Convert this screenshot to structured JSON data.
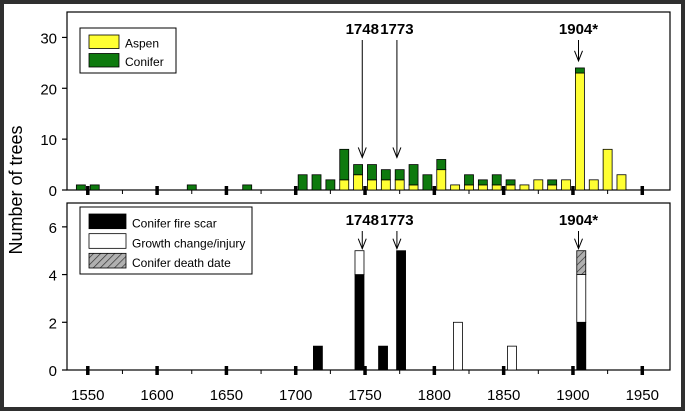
{
  "colors": {
    "aspen": "#ffff33",
    "conifer": "#0e7a0e",
    "fire_scar": "#000000",
    "growth_change": "#ffffff",
    "death_date": "#b0b0b0",
    "frame": "#2f2f2f"
  },
  "chart_data": [
    {
      "type": "bar",
      "stacked": true,
      "title": "",
      "ylabel": "Number of trees",
      "xlabel": "",
      "xlim": [
        1535,
        1970
      ],
      "ylim": [
        0,
        35
      ],
      "yticks": [
        0,
        10,
        20,
        30
      ],
      "bin_width": 10,
      "legend_position": "top-left",
      "x": [
        1545,
        1555,
        1625,
        1665,
        1705,
        1715,
        1725,
        1735,
        1745,
        1755,
        1765,
        1775,
        1785,
        1795,
        1805,
        1815,
        1825,
        1835,
        1845,
        1855,
        1865,
        1875,
        1885,
        1895,
        1905,
        1915,
        1925,
        1935
      ],
      "series": [
        {
          "name": "Aspen",
          "color_key": "aspen",
          "values": [
            0,
            0,
            0,
            0,
            0,
            0,
            0,
            2,
            3,
            2,
            2,
            2,
            1,
            0,
            4,
            1,
            1,
            1,
            1,
            1,
            1,
            2,
            1,
            2,
            23,
            2,
            8,
            3
          ]
        },
        {
          "name": "Conifer",
          "color_key": "conifer",
          "values": [
            1,
            1,
            1,
            1,
            3,
            3,
            2,
            6,
            2,
            3,
            2,
            2,
            4,
            3,
            2,
            0,
            2,
            1,
            2,
            1,
            0,
            0,
            1,
            0,
            1,
            0,
            0,
            0
          ]
        }
      ],
      "annotations": [
        {
          "label": "1748",
          "x": 1748,
          "arrow_to": 6
        },
        {
          "label": "1773",
          "x": 1773,
          "arrow_to": 6
        },
        {
          "label": "1904*",
          "x": 1904,
          "arrow_to": 25
        }
      ]
    },
    {
      "type": "bar",
      "stacked": true,
      "title": "",
      "ylabel": "",
      "xlabel": "",
      "xlim": [
        1535,
        1970
      ],
      "ylim": [
        0,
        7
      ],
      "yticks": [
        0,
        2,
        4,
        6
      ],
      "xticks": [
        1550,
        1600,
        1650,
        1700,
        1750,
        1800,
        1850,
        1900,
        1950
      ],
      "legend_position": "top-left",
      "x": [
        1716,
        1746,
        1763,
        1776,
        1817,
        1856,
        1906
      ],
      "series": [
        {
          "name": "Conifer fire scar",
          "color_key": "fire_scar",
          "pattern": "solid",
          "values": [
            1,
            4,
            1,
            5,
            0,
            0,
            2
          ]
        },
        {
          "name": "Growth change/injury",
          "color_key": "growth_change",
          "pattern": "solid",
          "values": [
            0,
            1,
            0,
            0,
            2,
            1,
            2
          ]
        },
        {
          "name": "Conifer death date",
          "color_key": "death_date",
          "pattern": "hatch",
          "values": [
            0,
            0,
            0,
            0,
            0,
            0,
            1
          ]
        }
      ],
      "annotations": [
        {
          "label": "1748",
          "x": 1748,
          "arrow_to": 5
        },
        {
          "label": "1773",
          "x": 1773,
          "arrow_to": 5
        },
        {
          "label": "1904*",
          "x": 1904,
          "arrow_to": 5
        }
      ]
    }
  ]
}
